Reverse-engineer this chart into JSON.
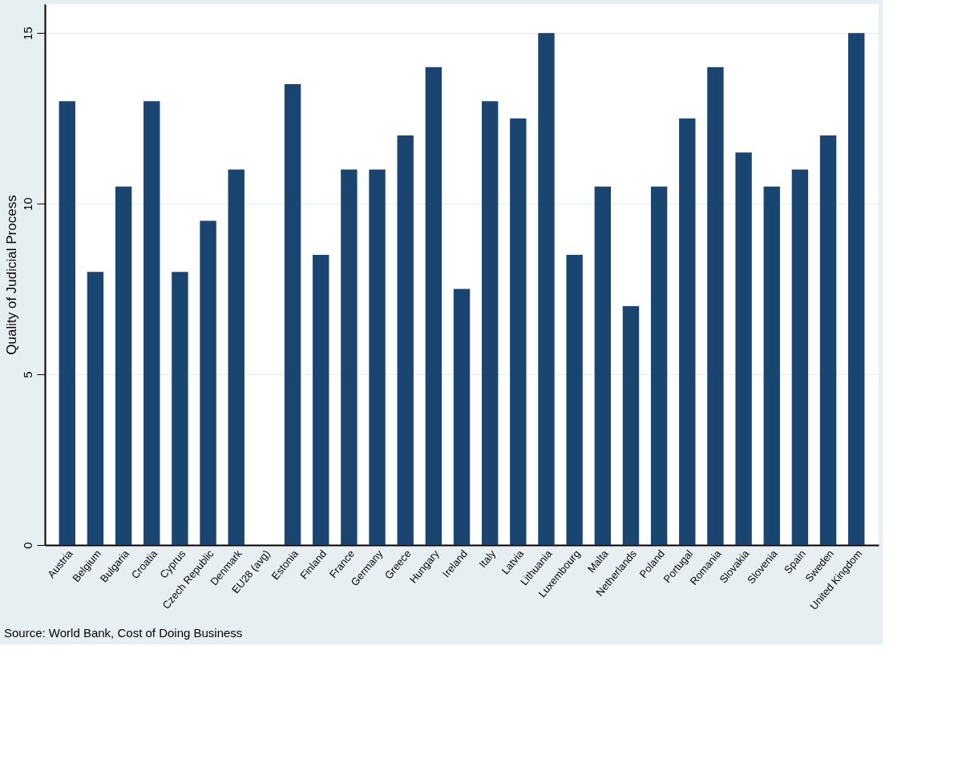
{
  "chart_data": {
    "type": "bar",
    "ylabel": "Quality of Judicial Process",
    "categories": [
      "Austria",
      "Belgium",
      "Bulgaria",
      "Croatia",
      "Cyprus",
      "Czech Republic",
      "Denmark",
      "EU28 (avg)",
      "Estonia",
      "Finland",
      "France",
      "Germany",
      "Greece",
      "Hungary",
      "Ireland",
      "Italy",
      "Latvia",
      "Lithuania",
      "Luxembourg",
      "Malta",
      "Netherlands",
      "Poland",
      "Portugal",
      "Romania",
      "Slovakia",
      "Slovenia",
      "Spain",
      "Sweden",
      "United Kingdom"
    ],
    "values": [
      13,
      8,
      10.5,
      13,
      8,
      9.5,
      11,
      null,
      13.5,
      8.5,
      11,
      11,
      12,
      14,
      7.5,
      13,
      12.5,
      15,
      8.5,
      10.5,
      7,
      10.5,
      12.5,
      14,
      11.5,
      10.5,
      11,
      12,
      15
    ],
    "color": "#1a4570",
    "ylim": [
      0,
      15.85
    ],
    "yticks": [
      0,
      5,
      10,
      15
    ],
    "grid": "y",
    "annotations": [
      "Source: World Bank, Cost of Doing Business"
    ]
  }
}
